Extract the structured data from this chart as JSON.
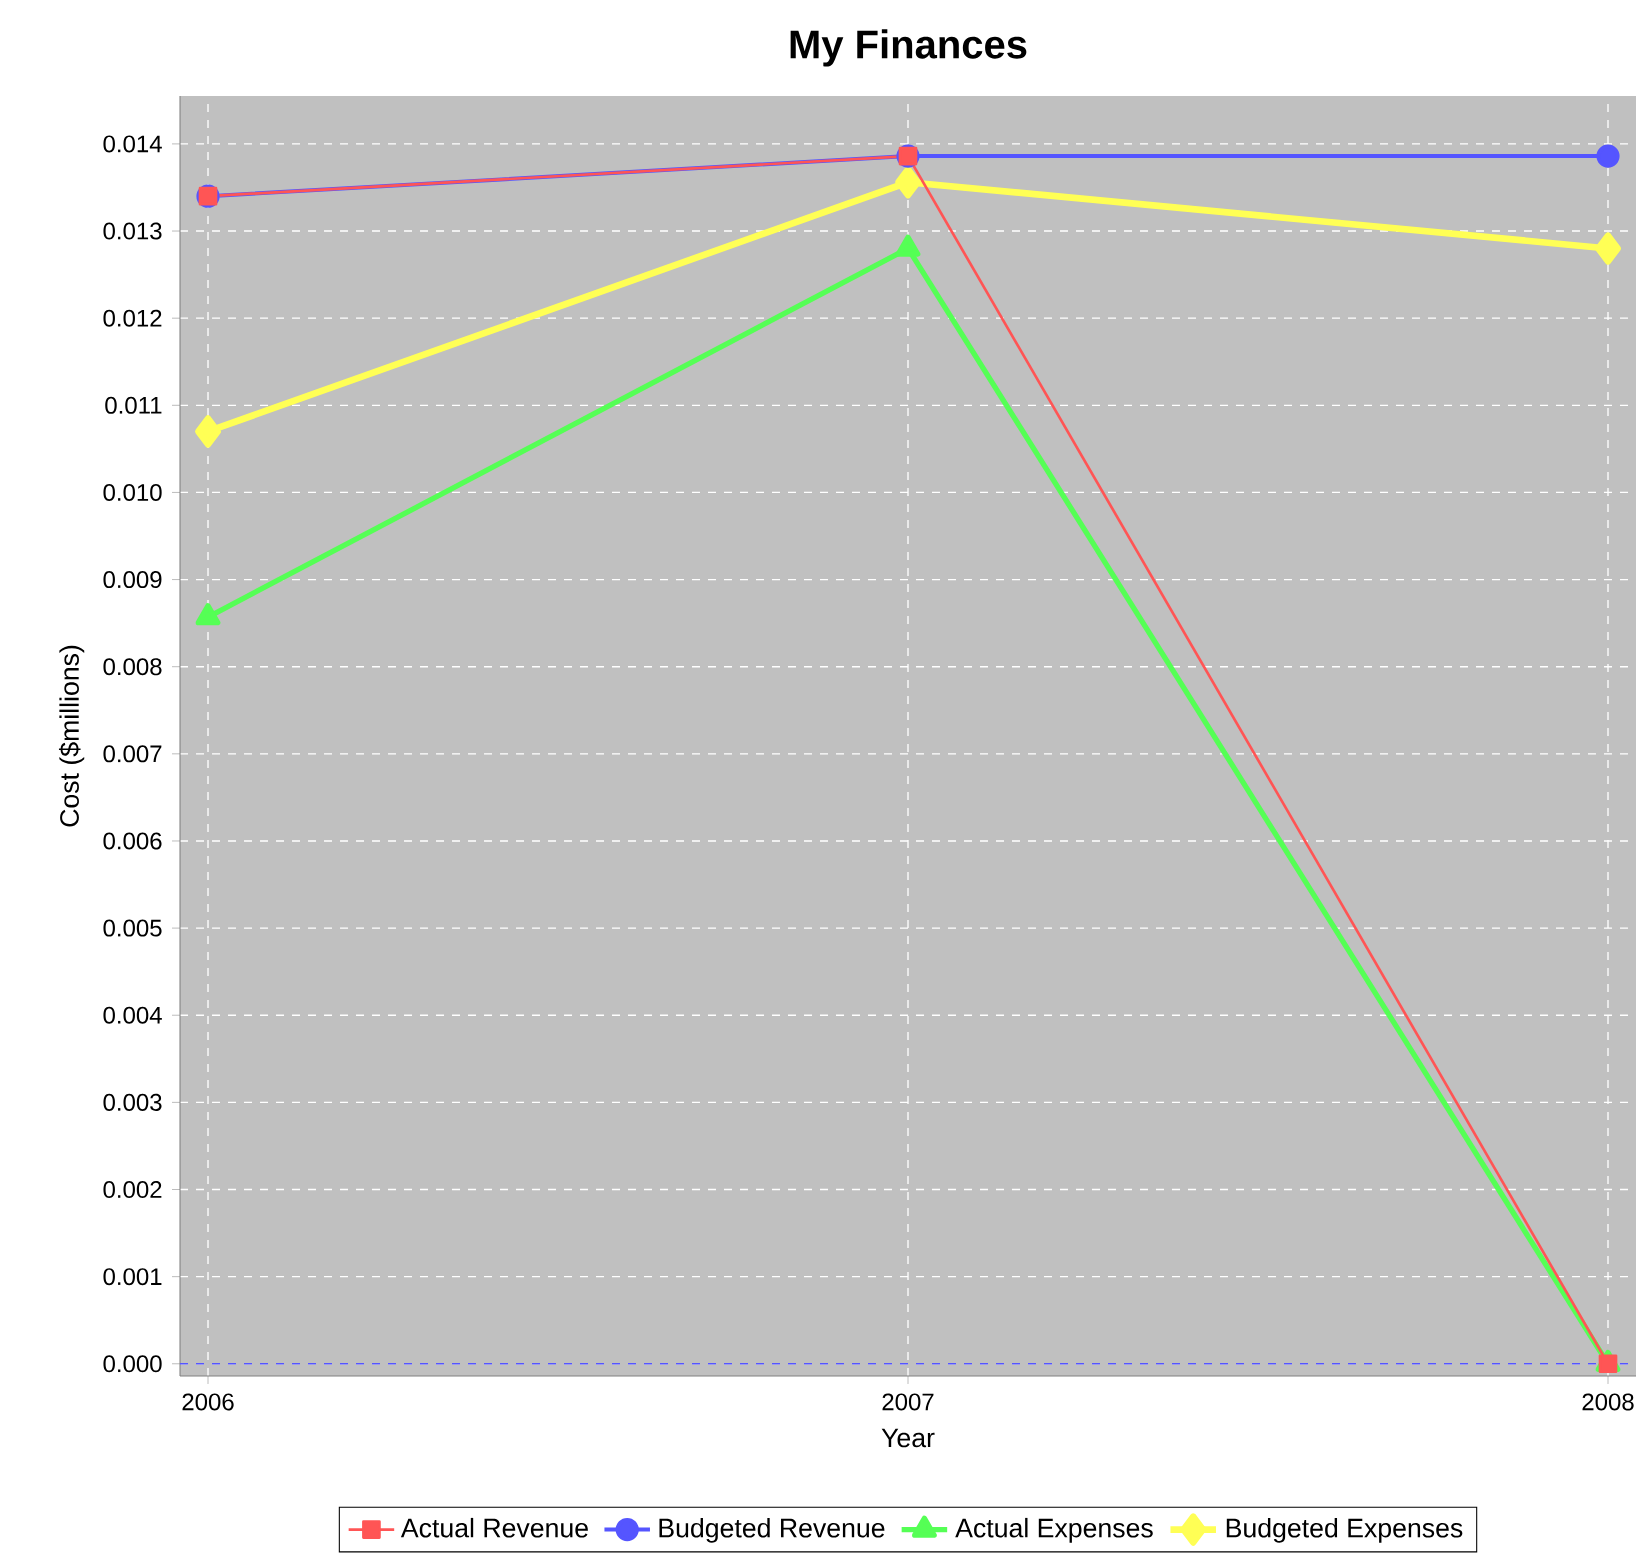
{
  "chart_data": {
    "type": "line",
    "title": "My Finances",
    "xlabel": "Year",
    "ylabel": "Cost ($millions)",
    "categories": [
      "2006",
      "2007",
      "2008"
    ],
    "series": [
      {
        "name": "Actual Revenue",
        "color": "#ff5555",
        "marker": "square",
        "values": [
          0.0134,
          0.01386,
          0.0
        ]
      },
      {
        "name": "Budgeted Revenue",
        "color": "#5555ff",
        "marker": "circle",
        "values": [
          0.0134,
          0.01386,
          0.01386
        ]
      },
      {
        "name": "Actual Expenses",
        "color": "#55ff55",
        "marker": "triangle",
        "values": [
          0.00857,
          0.0128,
          0.0
        ]
      },
      {
        "name": "Budgeted Expenses",
        "color": "#ffff55",
        "marker": "diamond",
        "values": [
          0.0107,
          0.01356,
          0.0128
        ]
      }
    ],
    "ylim": [
      -0.00014,
      0.01455
    ],
    "yticks": [
      {
        "value": 0.0,
        "label": "0.000"
      },
      {
        "value": 0.001,
        "label": "0.001"
      },
      {
        "value": 0.002,
        "label": "0.002"
      },
      {
        "value": 0.003,
        "label": "0.003"
      },
      {
        "value": 0.004,
        "label": "0.004"
      },
      {
        "value": 0.005,
        "label": "0.005"
      },
      {
        "value": 0.006,
        "label": "0.006"
      },
      {
        "value": 0.007,
        "label": "0.007"
      },
      {
        "value": 0.008,
        "label": "0.008"
      },
      {
        "value": 0.009,
        "label": "0.009"
      },
      {
        "value": 0.01,
        "label": "0.010"
      },
      {
        "value": 0.011,
        "label": "0.011"
      },
      {
        "value": 0.012,
        "label": "0.012"
      },
      {
        "value": 0.013,
        "label": "0.013"
      },
      {
        "value": 0.014,
        "label": "0.014"
      }
    ],
    "ref_lines": [
      {
        "axis": "y",
        "value": 0.0,
        "color": "#5555ff",
        "line_style": "dashed"
      }
    ],
    "grid": true,
    "legend": "bottom"
  }
}
